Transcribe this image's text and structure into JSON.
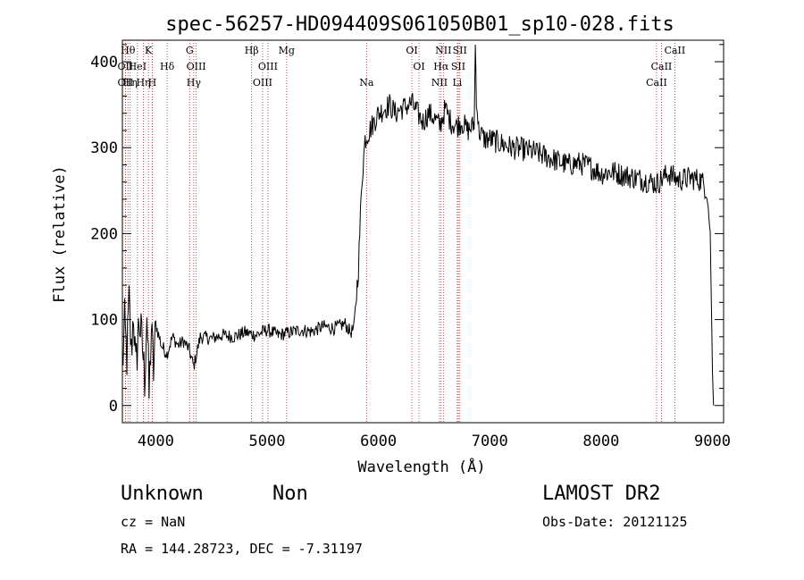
{
  "chart_data": {
    "type": "line",
    "title": "spec-56257-HD094409S061050B01_sp10-028.fits",
    "xlabel": "Wavelength (Å)",
    "ylabel": "Flux (relative)",
    "xlim": [
      3700,
      9100
    ],
    "ylim": [
      -20,
      425
    ],
    "xticks": [
      4000,
      5000,
      6000,
      7000,
      8000,
      9000
    ],
    "yticks": [
      0,
      100,
      200,
      300,
      400
    ],
    "xtick_labels": [
      "4000",
      "5000",
      "6000",
      "7000",
      "8000",
      "9000"
    ],
    "ytick_labels": [
      "0",
      "100",
      "200",
      "300",
      "400"
    ],
    "grid": false,
    "line_color": "#000000",
    "marker_color": "#b22222",
    "spectrum": [
      [
        3700,
        40
      ],
      [
        3720,
        95
      ],
      [
        3740,
        55
      ],
      [
        3760,
        120
      ],
      [
        3780,
        60
      ],
      [
        3800,
        110
      ],
      [
        3820,
        40
      ],
      [
        3850,
        100
      ],
      [
        3880,
        70
      ],
      [
        3900,
        30
      ],
      [
        3920,
        110
      ],
      [
        3940,
        10
      ],
      [
        3960,
        90
      ],
      [
        3980,
        40
      ],
      [
        4000,
        95
      ],
      [
        4050,
        70
      ],
      [
        4100,
        60
      ],
      [
        4150,
        80
      ],
      [
        4200,
        70
      ],
      [
        4250,
        75
      ],
      [
        4300,
        65
      ],
      [
        4340,
        45
      ],
      [
        4400,
        80
      ],
      [
        4500,
        78
      ],
      [
        4600,
        82
      ],
      [
        4700,
        80
      ],
      [
        4800,
        85
      ],
      [
        4900,
        82
      ],
      [
        5000,
        88
      ],
      [
        5100,
        82
      ],
      [
        5200,
        85
      ],
      [
        5300,
        88
      ],
      [
        5400,
        86
      ],
      [
        5500,
        92
      ],
      [
        5600,
        90
      ],
      [
        5700,
        95
      ],
      [
        5750,
        85
      ],
      [
        5780,
        90
      ],
      [
        5820,
        160
      ],
      [
        5850,
        260
      ],
      [
        5880,
        310
      ],
      [
        5920,
        320
      ],
      [
        5960,
        330
      ],
      [
        6000,
        340
      ],
      [
        6050,
        345
      ],
      [
        6100,
        350
      ],
      [
        6150,
        340
      ],
      [
        6200,
        345
      ],
      [
        6250,
        348
      ],
      [
        6300,
        352
      ],
      [
        6350,
        340
      ],
      [
        6400,
        330
      ],
      [
        6450,
        340
      ],
      [
        6500,
        335
      ],
      [
        6550,
        325
      ],
      [
        6600,
        345
      ],
      [
        6650,
        330
      ],
      [
        6700,
        325
      ],
      [
        6750,
        330
      ],
      [
        6800,
        320
      ],
      [
        6850,
        325
      ],
      [
        6860,
        330
      ],
      [
        6870,
        420
      ],
      [
        6880,
        360
      ],
      [
        6900,
        320
      ],
      [
        6950,
        310
      ],
      [
        7000,
        310
      ],
      [
        7100,
        305
      ],
      [
        7200,
        300
      ],
      [
        7300,
        298
      ],
      [
        7400,
        295
      ],
      [
        7500,
        290
      ],
      [
        7600,
        285
      ],
      [
        7700,
        280
      ],
      [
        7800,
        282
      ],
      [
        7900,
        278
      ],
      [
        8000,
        270
      ],
      [
        8100,
        272
      ],
      [
        8200,
        268
      ],
      [
        8300,
        265
      ],
      [
        8400,
        262
      ],
      [
        8500,
        258
      ],
      [
        8600,
        270
      ],
      [
        8700,
        262
      ],
      [
        8800,
        265
      ],
      [
        8900,
        262
      ],
      [
        8950,
        250
      ],
      [
        8980,
        200
      ],
      [
        9000,
        40
      ],
      [
        9010,
        0
      ]
    ],
    "lines": [
      {
        "wave": 3727,
        "labels": [
          "OII"
        ],
        "row": 1
      },
      {
        "wave": 3727,
        "labels": [
          "OII"
        ],
        "row": 2
      },
      {
        "wave": 3750,
        "labels": [
          "Hθ"
        ],
        "row": 0
      },
      {
        "wave": 3770,
        "labels": [
          "Hη"
        ],
        "row": 2
      },
      {
        "wave": 3835,
        "labels": [
          "HeI"
        ],
        "row": 1
      },
      {
        "wave": 3889,
        "labels": [
          "Hη"
        ],
        "row": 2
      },
      {
        "wave": 3934,
        "labels": [
          "K"
        ],
        "row": 0
      },
      {
        "wave": 3968,
        "labels": [
          "H"
        ],
        "row": 2
      },
      {
        "wave": 4102,
        "labels": [
          "Hδ"
        ],
        "row": 1
      },
      {
        "wave": 4304,
        "labels": [
          "G"
        ],
        "row": 0
      },
      {
        "wave": 4341,
        "labels": [
          "Hγ"
        ],
        "row": 2
      },
      {
        "wave": 4363,
        "labels": [
          "OIII"
        ],
        "row": 1
      },
      {
        "wave": 4861,
        "labels": [
          "Hβ"
        ],
        "row": 0
      },
      {
        "wave": 4959,
        "labels": [
          "OIII"
        ],
        "row": 2
      },
      {
        "wave": 5007,
        "labels": [
          "OIII"
        ],
        "row": 1
      },
      {
        "wave": 5175,
        "labels": [
          "Mg"
        ],
        "row": 0
      },
      {
        "wave": 5893,
        "labels": [
          "Na"
        ],
        "row": 2
      },
      {
        "wave": 6300,
        "labels": [
          "OI"
        ],
        "row": 0
      },
      {
        "wave": 6364,
        "labels": [
          "OI"
        ],
        "row": 1
      },
      {
        "wave": 6548,
        "labels": [
          "NII"
        ],
        "row": 2
      },
      {
        "wave": 6563,
        "labels": [
          "Hα"
        ],
        "row": 1
      },
      {
        "wave": 6583,
        "labels": [
          "NII"
        ],
        "row": 0
      },
      {
        "wave": 6708,
        "labels": [
          "Li"
        ],
        "row": 2
      },
      {
        "wave": 6717,
        "labels": [
          "SII"
        ],
        "row": 1
      },
      {
        "wave": 6731,
        "labels": [
          "SII"
        ],
        "row": 0
      },
      {
        "wave": 8498,
        "labels": [
          "CaII"
        ],
        "row": 2
      },
      {
        "wave": 8542,
        "labels": [
          "CaII"
        ],
        "row": 1
      },
      {
        "wave": 8662,
        "labels": [
          "CaII"
        ],
        "row": 0
      }
    ]
  },
  "info": {
    "object_class": "Unknown",
    "object_subclass": "Non",
    "survey": "LAMOST DR2",
    "cz": "cz = NaN",
    "obs_date": "Obs-Date: 20121125",
    "coords": "RA = 144.28723, DEC =  -7.31197"
  }
}
